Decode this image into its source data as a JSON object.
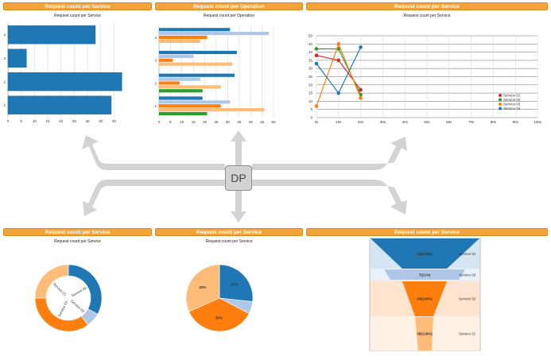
{
  "panels": {
    "p1": {
      "header": "Request count per Service",
      "title": "Request count per Service"
    },
    "p2": {
      "header": "Request count per Operation",
      "title": "Request count per Operation"
    },
    "p3": {
      "header": "Request count per Service",
      "title": "Request count per Service"
    },
    "p4": {
      "header": "Request count per Service",
      "title": "Request count per Service"
    },
    "p5": {
      "header": "Request count per Service",
      "title": "Request count per Service"
    },
    "p6": {
      "header": "Request count per Service"
    }
  },
  "hub": {
    "label": "DP"
  },
  "colors": {
    "header": "#f2a33a",
    "arrow": "#d3d3d3",
    "blue": "#1f77b4",
    "light_blue": "#aec7e8",
    "orange": "#ff7f0e",
    "light_orange": "#ffbb78",
    "green": "#2ca02c",
    "red": "#d62728"
  },
  "chart_data": [
    {
      "type": "bar",
      "orientation": "horizontal",
      "categories": [
        "1",
        "2",
        "3",
        "4"
      ],
      "values": [
        39,
        43,
        7,
        33
      ],
      "xlim": [
        0,
        45
      ],
      "xticks": [
        0,
        5,
        10,
        15,
        20,
        25,
        30,
        35,
        40
      ],
      "grid": true
    },
    {
      "type": "bar",
      "orientation": "horizontal",
      "categories": [
        "1",
        "2",
        "3",
        "4"
      ],
      "series": [
        {
          "color": "#1f77b4",
          "values": [
            19,
            33,
            34,
            31
          ]
        },
        {
          "color": "#aec7e8",
          "values": [
            31,
            18,
            15,
            48
          ]
        },
        {
          "color": "#ff7f0e",
          "values": [
            27,
            9,
            6,
            21
          ]
        },
        {
          "color": "#ffbb78",
          "values": [
            46,
            27,
            32,
            18
          ]
        },
        {
          "color": "#2ca02c",
          "values": [
            21,
            19,
            0,
            0
          ]
        }
      ],
      "xlim": [
        0,
        50
      ],
      "xticks": [
        0,
        5,
        10,
        15,
        20,
        25,
        30,
        35,
        40,
        45,
        50
      ],
      "grid": true
    },
    {
      "type": "line",
      "xticks": [
        "0s",
        "10s",
        "20s",
        "30s",
        "40s",
        "50s",
        "60s",
        "70s",
        "80s",
        "90s",
        "100s"
      ],
      "xlim": [
        0,
        100
      ],
      "ylim": [
        0,
        50
      ],
      "yticks": [
        0,
        5,
        10,
        15,
        20,
        25,
        30,
        35,
        40,
        45,
        50
      ],
      "series": [
        {
          "name": "Service 01",
          "color": "#d62728",
          "x": [
            0,
            10,
            20
          ],
          "y": [
            38,
            35,
            17
          ]
        },
        {
          "name": "Service 02",
          "color": "#2ca02c",
          "x": [
            0,
            10,
            20
          ],
          "y": [
            42,
            42,
            14
          ]
        },
        {
          "name": "Service 03",
          "color": "#ff7f0e",
          "x": [
            0,
            10,
            20
          ],
          "y": [
            7,
            45,
            12
          ]
        },
        {
          "name": "Service 04",
          "color": "#1f77b4",
          "x": [
            0,
            10,
            20
          ],
          "y": [
            33,
            15,
            43
          ]
        }
      ],
      "legend": "bottom-right",
      "grid": true
    },
    {
      "type": "pie",
      "donut": true,
      "slices": [
        {
          "label": "Service 04",
          "value": 33,
          "color": "#1f77b4"
        },
        {
          "label": "Service 03",
          "value": 7,
          "color": "#aec7e8"
        },
        {
          "label": "Service 02",
          "value": 35,
          "color": "#ff7f0e"
        },
        {
          "label": "Service 01",
          "value": 25,
          "color": "#ffbb78"
        }
      ]
    },
    {
      "type": "pie",
      "slices": [
        {
          "label": "27%",
          "value": 27,
          "color": "#1f77b4"
        },
        {
          "label": "",
          "value": 6,
          "color": "#aec7e8"
        },
        {
          "label": "36%",
          "value": 36,
          "color": "#ff7f0e"
        },
        {
          "label": "32%",
          "value": 32,
          "color": "#ffbb78"
        }
      ]
    },
    {
      "type": "funnel",
      "stages": [
        {
          "label": "33(100%)",
          "side_label": "Service 04",
          "color": "#1f77b4"
        },
        {
          "label": "7(21%)",
          "side_label": "Service 03",
          "color": "#aec7e8"
        },
        {
          "label": "43(130%)",
          "side_label": "Service 02",
          "color": "#ff7f0e"
        },
        {
          "label": "39(118%)",
          "side_label": "Service 01",
          "color": "#ffbb78"
        }
      ]
    }
  ]
}
